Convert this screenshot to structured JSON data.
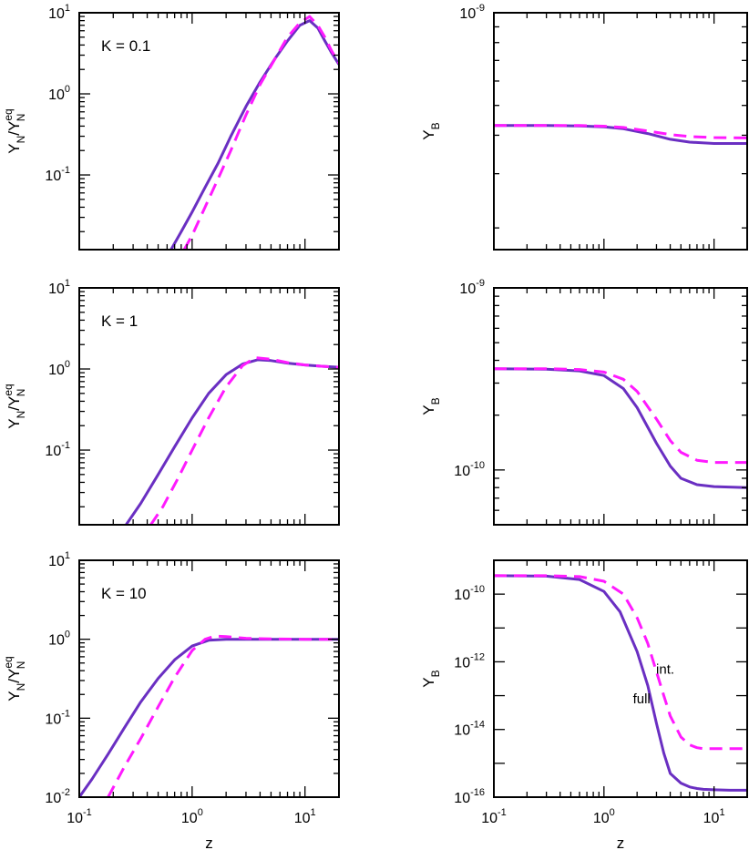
{
  "colors": {
    "full": "#6a2fc2",
    "int": "#ff1aff",
    "axis": "#000000"
  },
  "chart_data": [
    {
      "type": "line",
      "id": "yn-k01",
      "ylabel_main": "Y",
      "ylabel_sub1": "N",
      "ylabel_slash": "/Y",
      "ylabel_sup": "eq",
      "ylabel_sub2": "N",
      "annotation": "K = 0.1",
      "xscale": "log",
      "yscale": "log",
      "xlim": [
        0.1,
        20
      ],
      "ylim": [
        0.012,
        10
      ],
      "yticks": [
        {
          "mant": "10",
          "exp": "-1",
          "value": 0.1
        },
        {
          "mant": "10",
          "exp": "0",
          "value": 1
        },
        {
          "mant": "10",
          "exp": "1",
          "value": 10
        }
      ],
      "xticklabels": false,
      "xlabel": "",
      "series": [
        {
          "name": "full",
          "style": "solid",
          "x": [
            0.65,
            0.8,
            1,
            1.3,
            1.7,
            2.2,
            3,
            4,
            5.5,
            7,
            9,
            11,
            13,
            15,
            17,
            20
          ],
          "y": [
            0.012,
            0.02,
            0.035,
            0.07,
            0.14,
            0.3,
            0.7,
            1.4,
            2.8,
            4.5,
            7,
            8,
            6.5,
            4.5,
            3.3,
            2.3
          ]
        },
        {
          "name": "int.",
          "style": "dashed",
          "x": [
            0.85,
            1,
            1.3,
            1.7,
            2.2,
            3,
            4,
            5.5,
            7,
            9,
            11,
            13,
            15,
            17,
            20
          ],
          "y": [
            0.012,
            0.018,
            0.04,
            0.09,
            0.2,
            0.55,
            1.3,
            2.8,
            5,
            7.5,
            9,
            7,
            5,
            3.5,
            2.4
          ]
        }
      ]
    },
    {
      "type": "line",
      "id": "yb-k01",
      "ylabel_main": "Y",
      "ylabel_sub1": "B",
      "xscale": "log",
      "yscale": "log",
      "xlim": [
        0.1,
        20
      ],
      "ylim": [
        1.7e-10,
        1e-09
      ],
      "yticks": [
        {
          "mant": "10",
          "exp": "-9",
          "value": 1e-09
        }
      ],
      "xticklabels": false,
      "xlabel": "",
      "series": [
        {
          "name": "full",
          "style": "solid",
          "x": [
            0.1,
            0.3,
            0.6,
            1,
            1.5,
            2.5,
            4,
            6,
            10,
            20
          ],
          "y": [
            4.3e-10,
            4.3e-10,
            4.29e-10,
            4.26e-10,
            4.2e-10,
            4.05e-10,
            3.88e-10,
            3.8e-10,
            3.76e-10,
            3.76e-10
          ]
        },
        {
          "name": "int.",
          "style": "dashed",
          "x": [
            0.1,
            0.3,
            0.6,
            1,
            1.5,
            2.5,
            4,
            6,
            10,
            20
          ],
          "y": [
            4.3e-10,
            4.3e-10,
            4.3e-10,
            4.28e-10,
            4.24e-10,
            4.13e-10,
            4.02e-10,
            3.96e-10,
            3.93e-10,
            3.92e-10
          ]
        }
      ]
    },
    {
      "type": "line",
      "id": "yn-k1",
      "ylabel_main": "Y",
      "ylabel_sub1": "N",
      "ylabel_slash": "/Y",
      "ylabel_sup": "eq",
      "ylabel_sub2": "N",
      "annotation": "K = 1",
      "xscale": "log",
      "yscale": "log",
      "xlim": [
        0.1,
        20
      ],
      "ylim": [
        0.012,
        10
      ],
      "yticks": [
        {
          "mant": "10",
          "exp": "-1",
          "value": 0.1
        },
        {
          "mant": "10",
          "exp": "0",
          "value": 1
        },
        {
          "mant": "10",
          "exp": "1",
          "value": 10
        }
      ],
      "xticklabels": false,
      "xlabel": "",
      "series": [
        {
          "name": "full",
          "style": "solid",
          "x": [
            0.26,
            0.35,
            0.5,
            0.7,
            1,
            1.4,
            2,
            2.8,
            3.8,
            5,
            7,
            10,
            14,
            20
          ],
          "y": [
            0.012,
            0.022,
            0.05,
            0.11,
            0.25,
            0.5,
            0.85,
            1.15,
            1.3,
            1.27,
            1.18,
            1.12,
            1.08,
            1.05
          ]
        },
        {
          "name": "int.",
          "style": "dashed",
          "x": [
            0.43,
            0.55,
            0.75,
            1,
            1.4,
            2,
            2.8,
            3.6,
            5,
            7,
            10,
            14,
            20
          ],
          "y": [
            0.012,
            0.02,
            0.045,
            0.1,
            0.25,
            0.6,
            1.1,
            1.38,
            1.32,
            1.2,
            1.12,
            1.08,
            1.05
          ]
        }
      ]
    },
    {
      "type": "line",
      "id": "yb-k1",
      "ylabel_main": "Y",
      "ylabel_sub1": "B",
      "xscale": "log",
      "yscale": "log",
      "xlim": [
        0.1,
        20
      ],
      "ylim": [
        5e-11,
        1e-09
      ],
      "yticks": [
        {
          "mant": "10",
          "exp": "-10",
          "value": 1e-10
        },
        {
          "mant": "10",
          "exp": "-9",
          "value": 1e-09
        }
      ],
      "xticklabels": false,
      "xlabel": "",
      "series": [
        {
          "name": "full",
          "style": "solid",
          "x": [
            0.1,
            0.3,
            0.6,
            1,
            1.5,
            2,
            3,
            4,
            5,
            7,
            10,
            20
          ],
          "y": [
            3.6e-10,
            3.58e-10,
            3.5e-10,
            3.3e-10,
            2.8e-10,
            2.2e-10,
            1.4e-10,
            1.05e-10,
            9e-11,
            8.3e-11,
            8.1e-11,
            8e-11
          ]
        },
        {
          "name": "int.",
          "style": "dashed",
          "x": [
            0.1,
            0.3,
            0.6,
            1,
            1.5,
            2,
            3,
            4,
            5,
            7,
            10,
            20
          ],
          "y": [
            3.6e-10,
            3.6e-10,
            3.56e-10,
            3.45e-10,
            3.15e-10,
            2.7e-10,
            1.9e-10,
            1.45e-10,
            1.25e-10,
            1.13e-10,
            1.1e-10,
            1.1e-10
          ]
        }
      ]
    },
    {
      "type": "line",
      "id": "yn-k10",
      "ylabel_main": "Y",
      "ylabel_sub1": "N",
      "ylabel_slash": "/Y",
      "ylabel_sup": "eq",
      "ylabel_sub2": "N",
      "annotation": "K = 10",
      "xscale": "log",
      "yscale": "log",
      "xlim": [
        0.1,
        20
      ],
      "ylim": [
        0.01,
        10
      ],
      "yticks": [
        {
          "mant": "10",
          "exp": "-2",
          "value": 0.01
        },
        {
          "mant": "10",
          "exp": "-1",
          "value": 0.1
        },
        {
          "mant": "10",
          "exp": "0",
          "value": 1
        },
        {
          "mant": "10",
          "exp": "1",
          "value": 10
        }
      ],
      "xticks": [
        {
          "mant": "10",
          "exp": "-1",
          "value": 0.1
        },
        {
          "mant": "10",
          "exp": "0",
          "value": 1
        },
        {
          "mant": "10",
          "exp": "1",
          "value": 10
        }
      ],
      "xticklabels": true,
      "xlabel": "z",
      "series": [
        {
          "name": "full",
          "style": "solid",
          "x": [
            0.1,
            0.13,
            0.18,
            0.25,
            0.35,
            0.5,
            0.7,
            1,
            1.4,
            2,
            3,
            5,
            10,
            20
          ],
          "y": [
            0.01,
            0.017,
            0.035,
            0.075,
            0.16,
            0.32,
            0.55,
            0.82,
            0.97,
            1.0,
            1.0,
            1.0,
            1.0,
            1.0
          ]
        },
        {
          "name": "int.",
          "style": "dashed",
          "x": [
            0.18,
            0.25,
            0.35,
            0.5,
            0.7,
            1,
            1.3,
            1.6,
            2,
            3,
            5,
            10,
            20
          ],
          "y": [
            0.01,
            0.024,
            0.055,
            0.14,
            0.33,
            0.72,
            1.0,
            1.1,
            1.08,
            1.03,
            1.01,
            1.0,
            1.0
          ]
        }
      ]
    },
    {
      "type": "line",
      "id": "yb-k10",
      "ylabel_main": "Y",
      "ylabel_sub1": "B",
      "xscale": "log",
      "yscale": "log",
      "xlim": [
        0.1,
        20
      ],
      "ylim": [
        1e-16,
        1e-09
      ],
      "yticks": [
        {
          "mant": "10",
          "exp": "-16",
          "value": 1e-16
        },
        {
          "mant": "10",
          "exp": "-14",
          "value": 1e-14
        },
        {
          "mant": "10",
          "exp": "-12",
          "value": 1e-12
        },
        {
          "mant": "10",
          "exp": "-10",
          "value": 1e-10
        }
      ],
      "xticks": [
        {
          "mant": "10",
          "exp": "-1",
          "value": 0.1
        },
        {
          "mant": "10",
          "exp": "0",
          "value": 1
        },
        {
          "mant": "10",
          "exp": "1",
          "value": 10
        }
      ],
      "xticklabels": true,
      "xlabel": "z",
      "labels": [
        {
          "text": "full",
          "x": 2.2,
          "y": 6e-14
        },
        {
          "text": "int.",
          "x": 3.6,
          "y": 4.5e-13
        }
      ],
      "series": [
        {
          "name": "full",
          "style": "solid",
          "x": [
            0.1,
            0.3,
            0.6,
            1,
            1.4,
            2,
            2.5,
            3,
            3.5,
            4,
            5,
            6,
            7,
            8,
            10,
            14,
            20
          ],
          "y": [
            3.5e-10,
            3.4e-10,
            2.7e-10,
            1.2e-10,
            3e-11,
            2e-12,
            2e-13,
            1.5e-14,
            2e-15,
            5e-16,
            2.6e-16,
            2e-16,
            1.8e-16,
            1.7e-16,
            1.65e-16,
            1.6e-16,
            1.6e-16
          ]
        },
        {
          "name": "int.",
          "style": "dashed",
          "x": [
            0.1,
            0.3,
            0.6,
            1,
            1.5,
            2,
            2.5,
            3,
            3.5,
            4,
            5,
            6,
            7,
            8,
            10,
            14,
            20
          ],
          "y": [
            3.5e-10,
            3.5e-10,
            3.3e-10,
            2.4e-10,
            1e-10,
            2e-11,
            3.5e-12,
            5e-13,
            1e-13,
            2.5e-14,
            6e-15,
            3.5e-15,
            2.9e-15,
            2.7e-15,
            2.7e-15,
            2.7e-15,
            2.7e-15
          ]
        }
      ]
    }
  ]
}
